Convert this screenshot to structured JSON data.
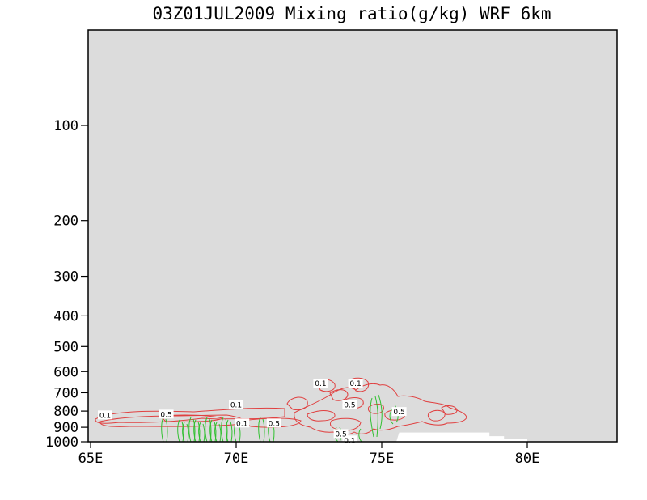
{
  "chart_data": {
    "type": "contour",
    "title": "03Z01JUL2009 Mixing ratio(g/kg)  WRF 6km",
    "x_range": [
      65,
      83
    ],
    "y_scale": "log",
    "y_range": [
      1000,
      20
    ],
    "x_ticks": [
      {
        "value": 65,
        "label": "65E"
      },
      {
        "value": 70,
        "label": "70E"
      },
      {
        "value": 75,
        "label": "75E"
      },
      {
        "value": 80,
        "label": "80E"
      }
    ],
    "y_ticks": [
      {
        "value": 100,
        "label": "100"
      },
      {
        "value": 200,
        "label": "200"
      },
      {
        "value": 300,
        "label": "300"
      },
      {
        "value": 400,
        "label": "400"
      },
      {
        "value": 500,
        "label": "500"
      },
      {
        "value": 600,
        "label": "600"
      },
      {
        "value": 700,
        "label": "700"
      },
      {
        "value": 800,
        "label": "800"
      },
      {
        "value": 900,
        "label": "900"
      },
      {
        "value": 1000,
        "label": "1000"
      }
    ],
    "background_color": "#dcdcdc",
    "terrain_color": "#ffffff",
    "terrain_profile": [
      [
        75.5,
        1000
      ],
      [
        75.6,
        935
      ],
      [
        78.7,
        935
      ],
      [
        78.7,
        960
      ],
      [
        79.2,
        960
      ],
      [
        79.2,
        980
      ],
      [
        80.0,
        980
      ],
      [
        80.0,
        1000
      ]
    ],
    "contour_levels": [
      {
        "value": 0.1,
        "label": "0.1",
        "color": "#e04040"
      },
      {
        "value": 0.5,
        "label": "0.5",
        "color": "#e04040"
      },
      {
        "value": 1,
        "label": "1",
        "color": "#30c030"
      }
    ],
    "contour_labels": [
      {
        "text": "0.1",
        "x": 65.5,
        "p": 825
      },
      {
        "text": "0.1",
        "x": 70.0,
        "p": 765
      },
      {
        "text": "0.1",
        "x": 70.2,
        "p": 875
      },
      {
        "text": "0.1",
        "x": 72.9,
        "p": 655
      },
      {
        "text": "0.1",
        "x": 74.1,
        "p": 655
      },
      {
        "text": "0.1",
        "x": 73.9,
        "p": 990
      },
      {
        "text": "0.5",
        "x": 67.6,
        "p": 820
      },
      {
        "text": "0.5",
        "x": 71.3,
        "p": 875
      },
      {
        "text": "0.5",
        "x": 73.9,
        "p": 765
      },
      {
        "text": "0.5",
        "x": 73.6,
        "p": 945
      },
      {
        "text": "0.5",
        "x": 75.6,
        "p": 805
      }
    ]
  }
}
